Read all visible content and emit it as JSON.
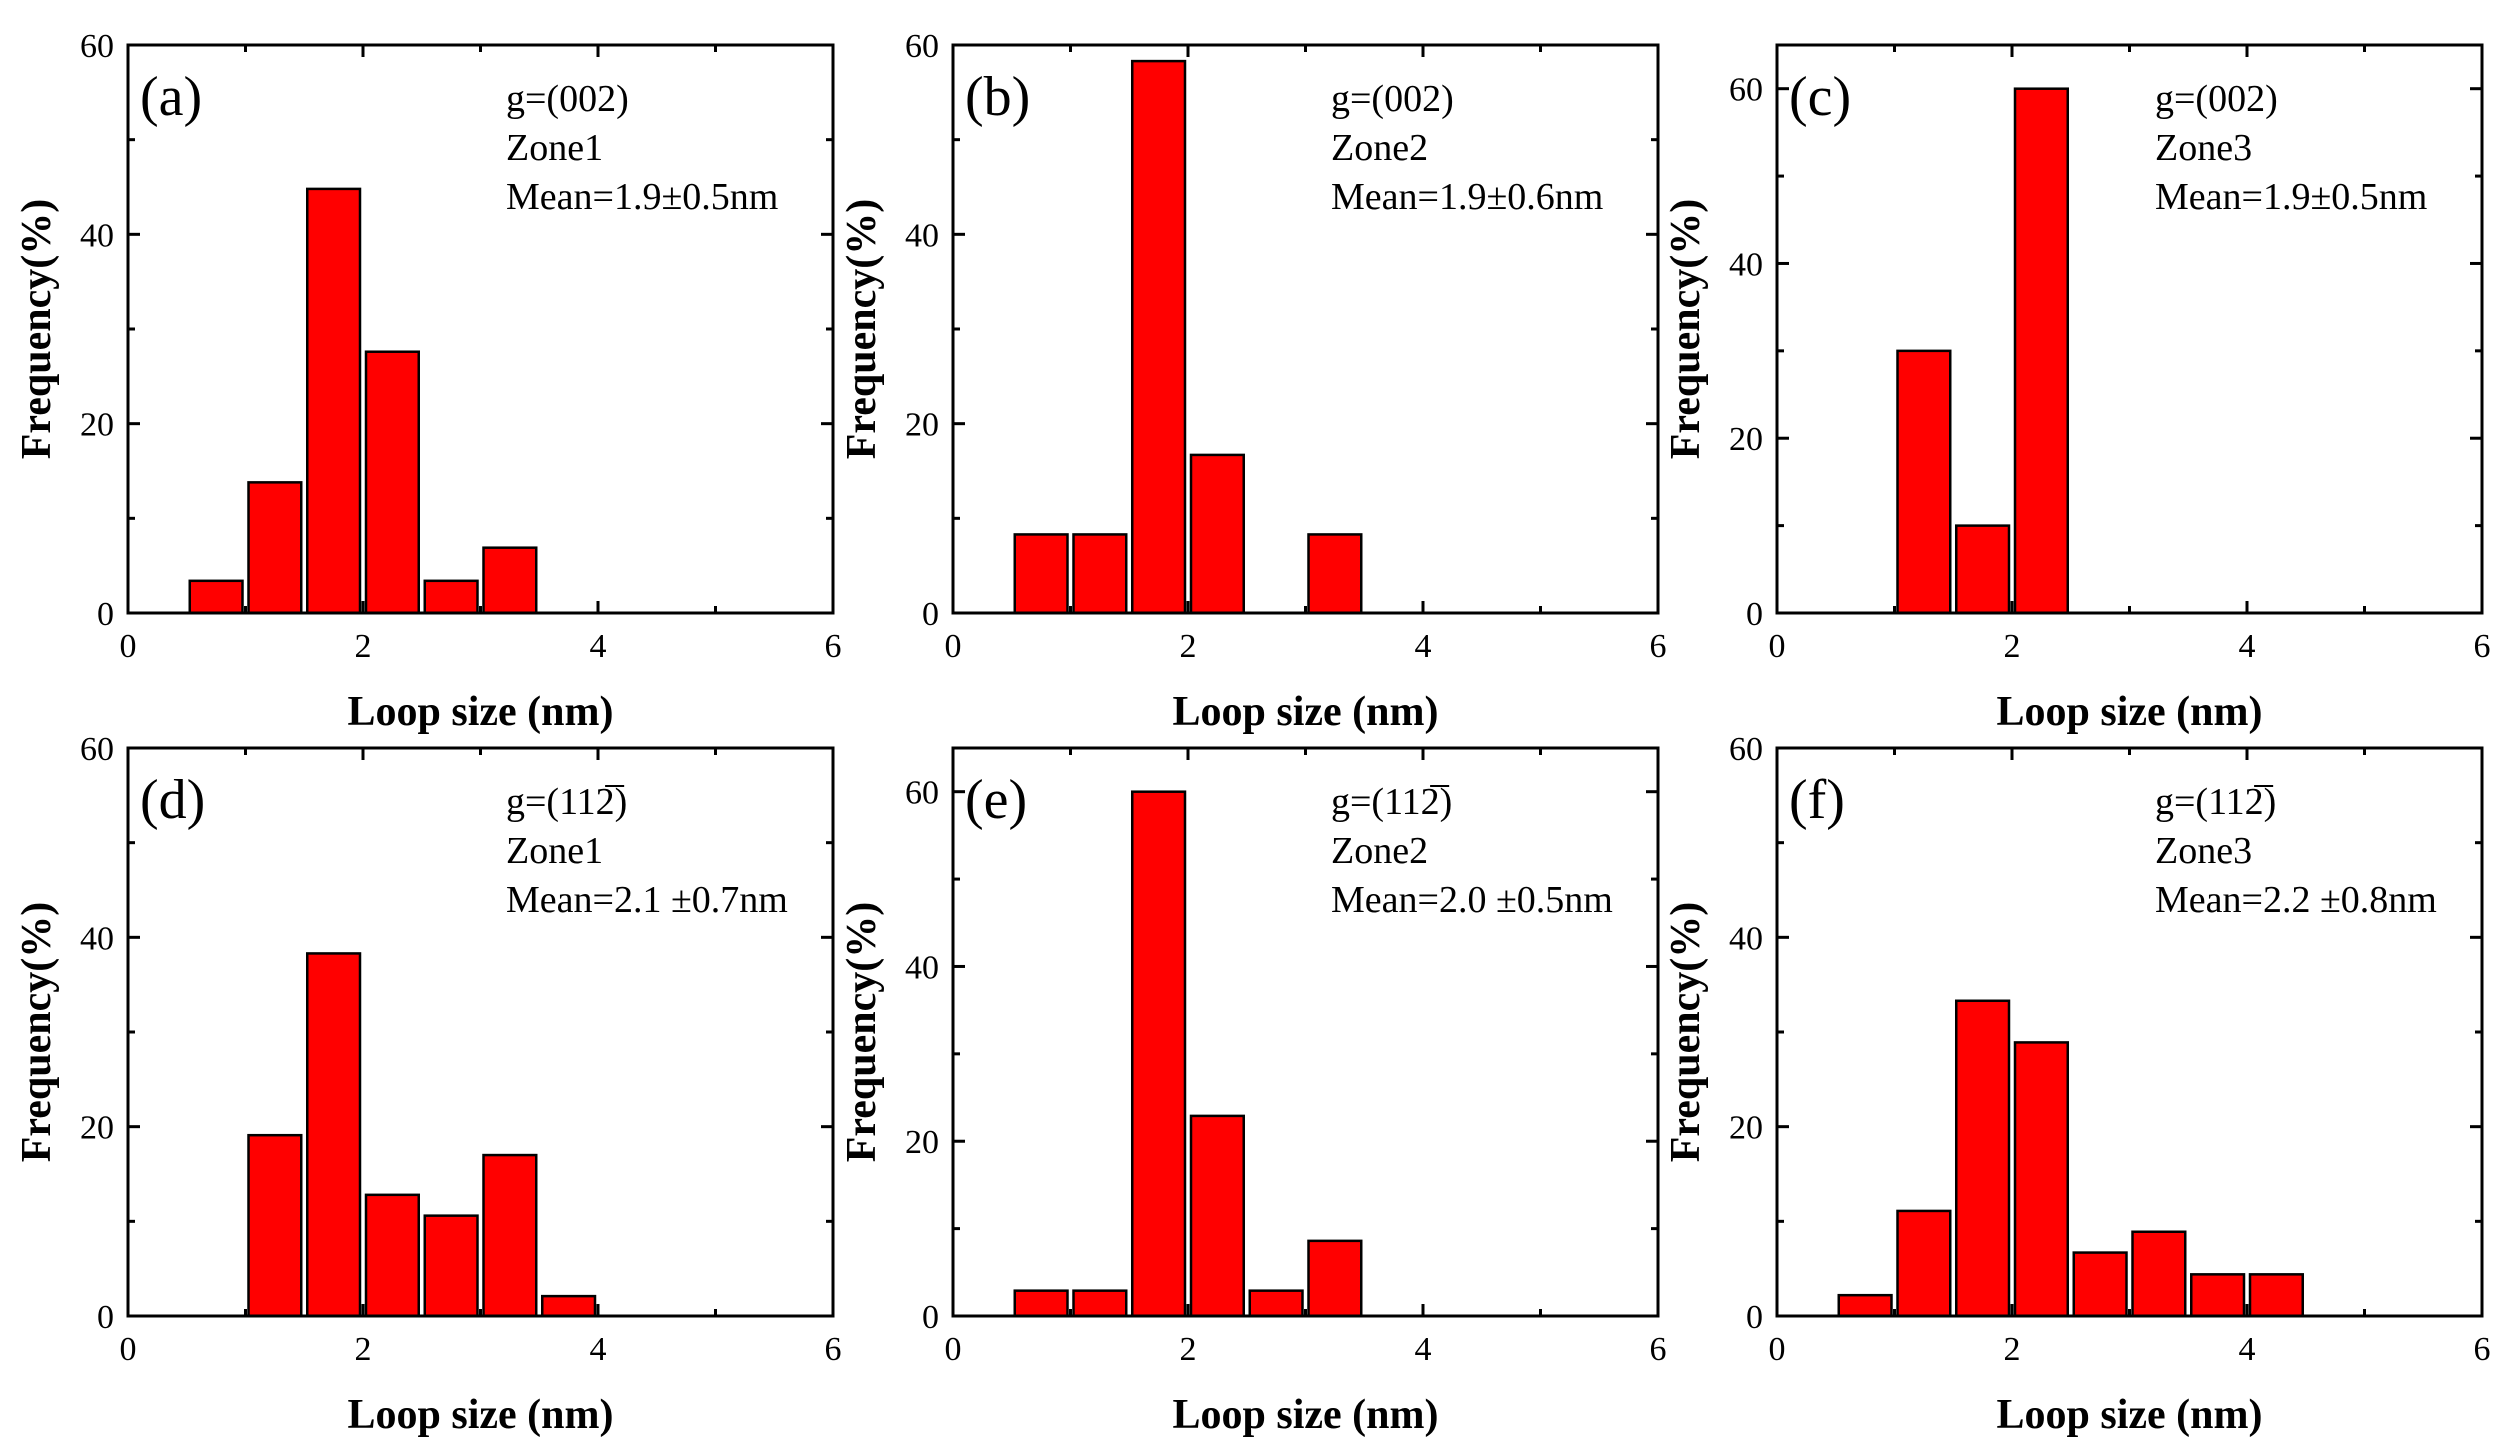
{
  "chart_data": [
    {
      "type": "bar",
      "panel_label": "(a)",
      "annotations": [
        "g=(002)",
        "Zone1",
        "Mean=1.9±0.5nm"
      ],
      "xlabel": "Loop size (nm)",
      "ylabel": "Frequency(%)",
      "xlim": [
        0,
        6
      ],
      "ylim": [
        0,
        60
      ],
      "xticks": [
        "0",
        "2",
        "4",
        "6"
      ],
      "yticks": [
        "0",
        "20",
        "40",
        "60"
      ],
      "bins": [
        0.75,
        1.25,
        1.75,
        2.25,
        2.75,
        3.25
      ],
      "values": [
        3.4,
        13.8,
        44.8,
        27.6,
        3.4,
        6.9
      ]
    },
    {
      "type": "bar",
      "panel_label": "(b)",
      "annotations": [
        "g=(002)",
        "Zone2",
        "Mean=1.9±0.6nm"
      ],
      "xlabel": "Loop size (nm)",
      "ylabel": "Frequency(%)",
      "xlim": [
        0,
        6
      ],
      "ylim": [
        0,
        60
      ],
      "xticks": [
        "0",
        "2",
        "4",
        "6"
      ],
      "yticks": [
        "0",
        "20",
        "40",
        "60"
      ],
      "bins": [
        0.75,
        1.25,
        1.75,
        2.25,
        3.25
      ],
      "values": [
        8.3,
        8.3,
        58.3,
        16.7,
        8.3
      ]
    },
    {
      "type": "bar",
      "panel_label": "(c)",
      "annotations": [
        "g=(002)",
        "Zone3",
        "Mean=1.9±0.5nm"
      ],
      "xlabel": "Loop size (nm)",
      "ylabel": "Frequency(%)",
      "xlim": [
        0,
        6
      ],
      "ylim": [
        0,
        65
      ],
      "xticks": [
        "0",
        "2",
        "4",
        "6"
      ],
      "yticks": [
        "0",
        "20",
        "40",
        "60"
      ],
      "bins": [
        1.25,
        1.75,
        2.25
      ],
      "values": [
        30,
        10,
        60
      ]
    },
    {
      "type": "bar",
      "panel_label": "(d)",
      "annotations": [
        "g=(112̅)",
        "Zone1",
        "Mean=2.1 ±0.7nm"
      ],
      "xlabel": "Loop size (nm)",
      "ylabel": "Frequency(%)",
      "xlim": [
        0,
        6
      ],
      "ylim": [
        0,
        60
      ],
      "xticks": [
        "0",
        "2",
        "4",
        "6"
      ],
      "yticks": [
        "0",
        "20",
        "40",
        "60"
      ],
      "bins": [
        1.25,
        1.75,
        2.25,
        2.75,
        3.25,
        3.75
      ],
      "values": [
        19.1,
        38.3,
        12.8,
        10.6,
        17.0,
        2.1
      ]
    },
    {
      "type": "bar",
      "panel_label": "(e)",
      "annotations": [
        "g=(112̅)",
        "Zone2",
        "Mean=2.0 ±0.5nm"
      ],
      "xlabel": "Loop size (nm)",
      "ylabel": "Frequency(%)",
      "xlim": [
        0,
        6
      ],
      "ylim": [
        0,
        65
      ],
      "xticks": [
        "0",
        "2",
        "4",
        "6"
      ],
      "yticks": [
        "0",
        "20",
        "40",
        "60"
      ],
      "bins": [
        0.75,
        1.25,
        1.75,
        2.25,
        2.75,
        3.25
      ],
      "values": [
        2.9,
        2.9,
        60,
        22.9,
        2.9,
        8.6
      ]
    },
    {
      "type": "bar",
      "panel_label": "(f)",
      "annotations": [
        "g=(112̅)",
        "Zone3",
        "Mean=2.2 ±0.8nm"
      ],
      "xlabel": "Loop size (nm)",
      "ylabel": "Frequency(%)",
      "xlim": [
        0,
        6
      ],
      "ylim": [
        0,
        60
      ],
      "xticks": [
        "0",
        "2",
        "4",
        "6"
      ],
      "yticks": [
        "0",
        "20",
        "40",
        "60"
      ],
      "bins": [
        0.75,
        1.25,
        1.75,
        2.25,
        2.75,
        3.25,
        3.75,
        4.25
      ],
      "values": [
        2.2,
        11.1,
        33.3,
        28.9,
        6.7,
        8.9,
        4.4,
        4.4
      ]
    }
  ]
}
